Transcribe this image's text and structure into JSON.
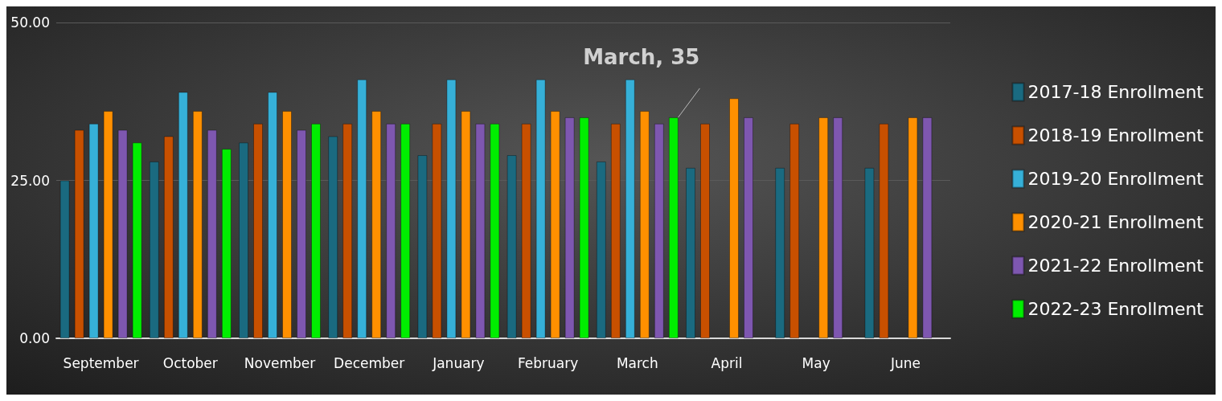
{
  "chart_data": {
    "type": "bar",
    "categories": [
      "September",
      "October",
      "November",
      "December",
      "January",
      "February",
      "March",
      "April",
      "May",
      "June"
    ],
    "series": [
      {
        "name": "2017-18 Enrollment",
        "color": "#1a6a80",
        "values": [
          25,
          28,
          31,
          32,
          29,
          29,
          28,
          27,
          27,
          27
        ]
      },
      {
        "name": "2018-19 Enrollment",
        "color": "#c85000",
        "values": [
          33,
          32,
          34,
          34,
          34,
          34,
          34,
          34,
          34,
          34
        ]
      },
      {
        "name": "2019-20 Enrollment",
        "color": "#36b0d8",
        "values": [
          34,
          39,
          39,
          41,
          41,
          41,
          41,
          null,
          null,
          null
        ]
      },
      {
        "name": "2020-21 Enrollment",
        "color": "#ff9000",
        "values": [
          36,
          36,
          36,
          36,
          36,
          36,
          36,
          38,
          35,
          35
        ]
      },
      {
        "name": "2021-22 Enrollment",
        "color": "#7e57b0",
        "values": [
          33,
          33,
          33,
          34,
          34,
          35,
          34,
          35,
          35,
          35
        ]
      },
      {
        "name": "2022-23 Enrollment",
        "color": "#00ee00",
        "values": [
          31,
          30,
          34,
          34,
          34,
          35,
          35,
          null,
          null,
          null
        ]
      }
    ],
    "ylim": [
      0,
      50
    ],
    "yticks": [
      {
        "value": 0,
        "label": "0.00"
      },
      {
        "value": 25,
        "label": "25.00"
      },
      {
        "value": 50,
        "label": "50.00"
      }
    ],
    "grid": "y",
    "legend": "right",
    "annotations": [
      {
        "text": "March, 35",
        "x": "March",
        "y": 35
      }
    ]
  }
}
